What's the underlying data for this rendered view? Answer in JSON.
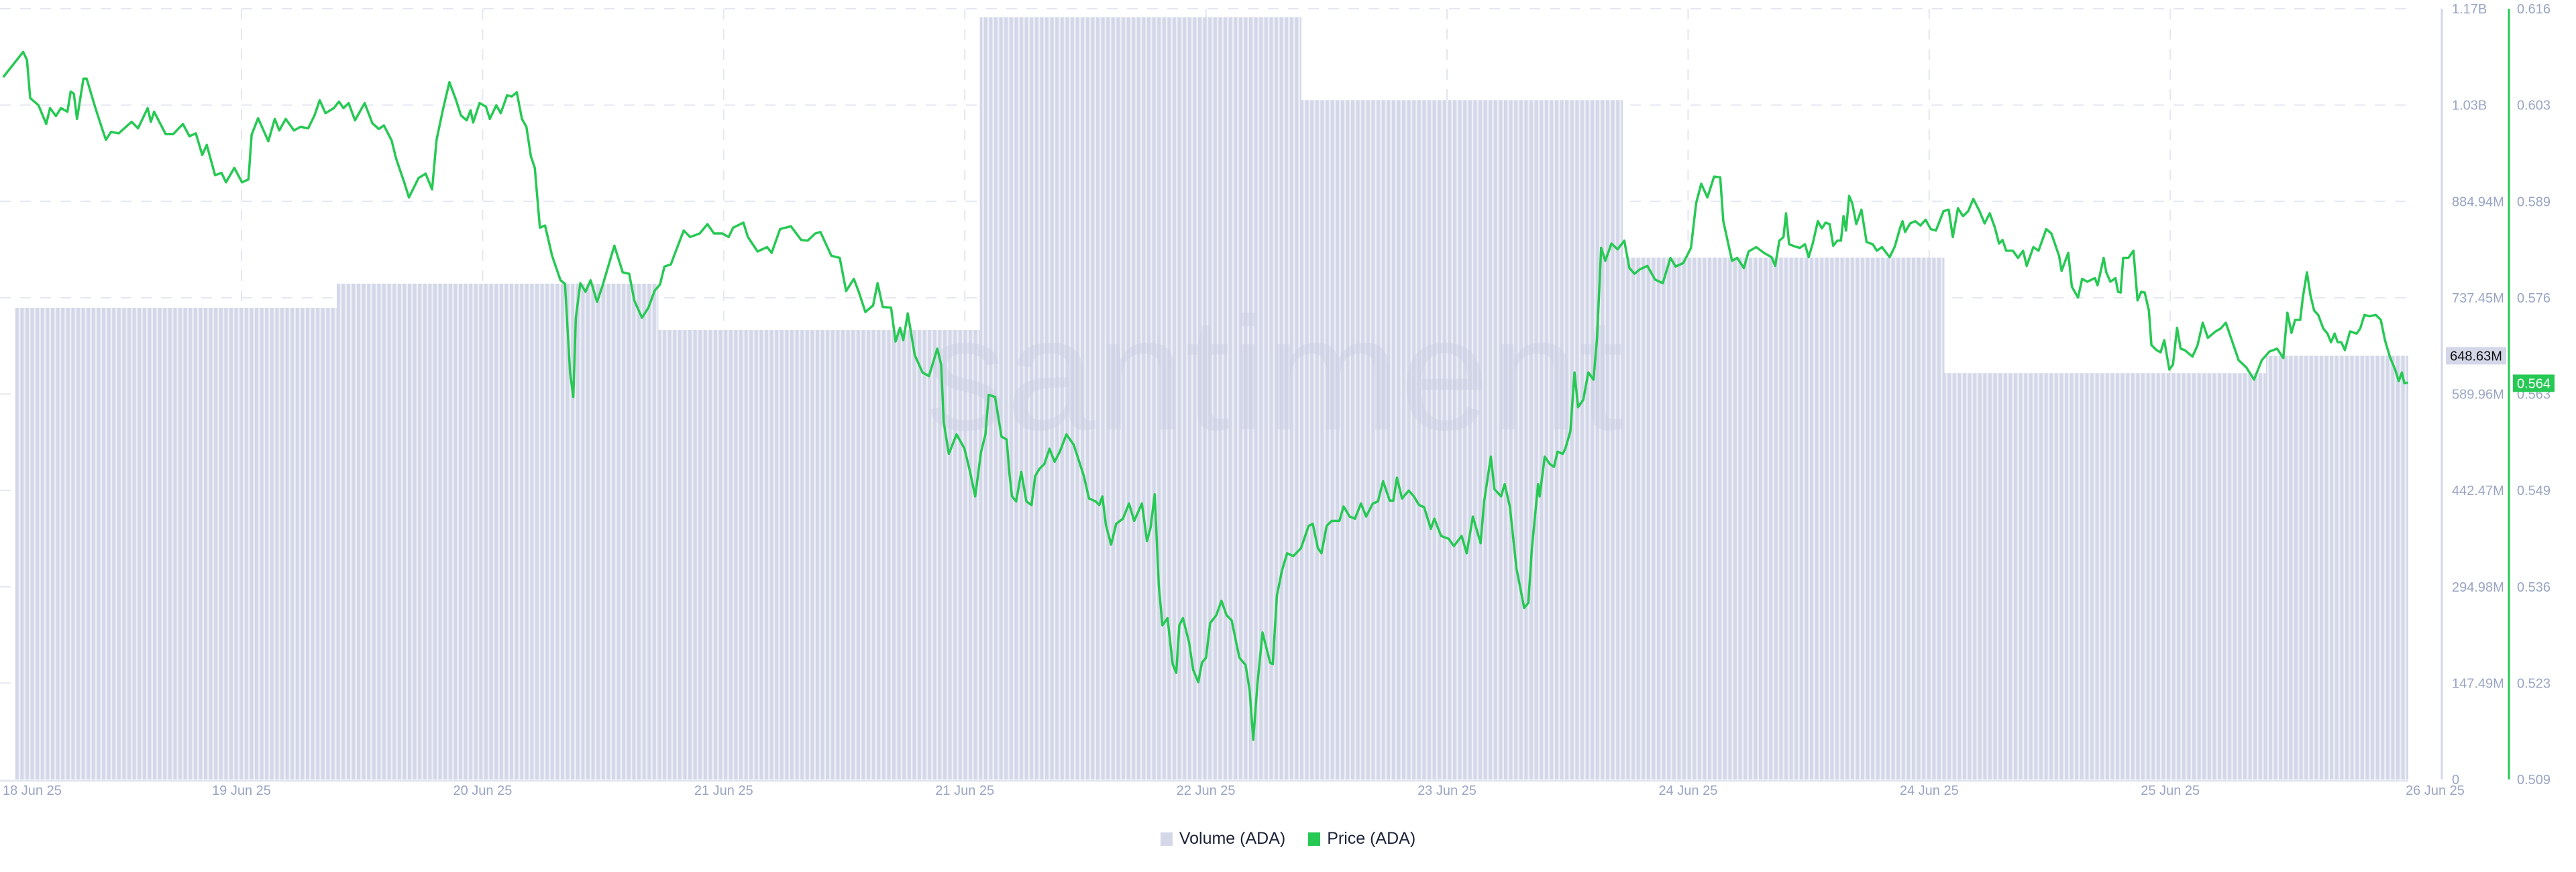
{
  "watermark": "santiment",
  "legend": [
    {
      "label": "Volume (ADA)",
      "color": "#d3d7e8"
    },
    {
      "label": "Price (ADA)",
      "color": "#26c953"
    }
  ],
  "chart_data": {
    "type": "bar+line",
    "x_tick_labels": [
      "18 Jun 25",
      "19 Jun 25",
      "20 Jun 25",
      "21 Jun 25",
      "21 Jun 25",
      "22 Jun 25",
      "23 Jun 25",
      "24 Jun 25",
      "24 Jun 25",
      "25 Jun 25",
      "26 Jun 25"
    ],
    "grid": true,
    "legend_position": "bottom",
    "volume_axis": {
      "side": "right",
      "ylim": [
        0,
        1179920000
      ],
      "tick_labels": [
        "1.17B",
        "1.03B",
        "884.94M",
        "737.45M",
        "589.96M",
        "442.47M",
        "294.98M",
        "147.49M",
        "0"
      ],
      "current_label": "648.63M"
    },
    "price_axis": {
      "side": "right",
      "ylim": [
        0.509,
        0.616
      ],
      "tick_labels": [
        "0.616",
        "0.603",
        "0.589",
        "0.576",
        "0.563",
        "0.549",
        "0.536",
        "0.523",
        "0.509"
      ],
      "current_label": "0.564"
    },
    "series": [
      {
        "name": "Volume (ADA)",
        "type": "bar",
        "color": "#d3d7e8",
        "values": [
          722000000,
          759000000,
          688000000,
          1167000000,
          1040000000,
          799000000,
          622000000,
          648630000
        ]
      },
      {
        "name": "Price (ADA)",
        "type": "line",
        "color": "#26c953",
        "values": [
          0.6065,
          0.61,
          0.6089,
          0.6036,
          0.6026,
          0.6,
          0.6022,
          0.6011,
          0.6022,
          0.6017,
          0.6045,
          0.6042,
          0.6007,
          0.6063,
          0.6063,
          0.6024,
          0.5991,
          0.5978,
          0.5989,
          0.5987,
          0.6003,
          0.5994,
          0.6022,
          0.6003,
          0.6017,
          0.5986,
          0.5986,
          0.6,
          0.5983,
          0.5987,
          0.5957,
          0.5971,
          0.5929,
          0.5932,
          0.5919,
          0.5939,
          0.5919,
          0.5923,
          0.5985,
          0.6008,
          0.5976,
          0.6007,
          0.5991,
          0.6007,
          0.5991,
          0.5996,
          0.5994,
          0.6012,
          0.6033,
          0.6015,
          0.6022,
          0.6031,
          0.6022,
          0.6029,
          0.6005,
          0.6029,
          0.6001,
          0.5993,
          0.5998,
          0.5977,
          0.5952,
          0.5918,
          0.5898,
          0.5925,
          0.5931,
          0.5909,
          0.5978,
          0.602,
          0.6058,
          0.6034,
          0.6012,
          0.6005,
          0.6019,
          0.6002,
          0.6029,
          0.6024,
          0.6007,
          0.6026,
          0.6015,
          0.604,
          0.6038,
          0.6044,
          0.6007,
          0.5996,
          0.5955,
          0.5939,
          0.5856,
          0.5859,
          0.5817,
          0.5783,
          0.5778,
          0.5655,
          0.5621,
          0.5731,
          0.5779,
          0.5767,
          0.5783,
          0.5753,
          0.5774,
          0.5831,
          0.5794,
          0.5792,
          0.5755,
          0.5731,
          0.5745,
          0.5769,
          0.5777,
          0.5802,
          0.5805,
          0.5817,
          0.5852,
          0.5843,
          0.5848,
          0.5861,
          0.5848,
          0.5848,
          0.5843,
          0.5856,
          0.5863,
          0.5843,
          0.5823,
          0.5829,
          0.5821,
          0.5854,
          0.5858,
          0.5839,
          0.5838,
          0.5848,
          0.585,
          0.5817,
          0.5814,
          0.5768,
          0.5785,
          0.5766,
          0.5739,
          0.5748,
          0.5779,
          0.5746,
          0.5745,
          0.5698,
          0.5717,
          0.57,
          0.5737,
          0.5679,
          0.5655,
          0.565,
          0.5688,
          0.5666,
          0.5586,
          0.5542,
          0.5569,
          0.555,
          0.5521,
          0.5483,
          0.5544,
          0.5569,
          0.5624,
          0.5621,
          0.5566,
          0.5562,
          0.5514,
          0.5483,
          0.5476,
          0.5517,
          0.5476,
          0.5471,
          0.5511,
          0.5521,
          0.5528,
          0.5549,
          0.5531,
          0.5545,
          0.5569,
          0.5555,
          0.5542,
          0.5511,
          0.548,
          0.5476,
          0.5471,
          0.5483,
          0.5443,
          0.5416,
          0.5445,
          0.5452,
          0.5473,
          0.5449,
          0.5473,
          0.5421,
          0.544,
          0.5486,
          0.5359,
          0.5304,
          0.5314,
          0.525,
          0.5238,
          0.5304,
          0.5314,
          0.528,
          0.5242,
          0.5225,
          0.5252,
          0.5259,
          0.5307,
          0.5318,
          0.5338,
          0.5318,
          0.5311,
          0.5259,
          0.5249,
          0.5214,
          0.5145,
          0.5221,
          0.5294,
          0.5252,
          0.525,
          0.5345,
          0.538,
          0.5404,
          0.54,
          0.5411,
          0.5442,
          0.5445,
          0.5411,
          0.5404,
          0.5442,
          0.5449,
          0.5449,
          0.5469,
          0.5455,
          0.5452,
          0.5473,
          0.5455,
          0.5473,
          0.5476,
          0.5504,
          0.5477,
          0.5477,
          0.5509,
          0.548,
          0.5491,
          0.5483,
          0.5471,
          0.5468,
          0.5438,
          0.5452,
          0.5428,
          0.5424,
          0.5414,
          0.5428,
          0.5404,
          0.5455,
          0.5418,
          0.5476,
          0.5538,
          0.5493,
          0.5483,
          0.55,
          0.5469,
          0.5383,
          0.5328,
          0.5335,
          0.5411,
          0.55,
          0.5483,
          0.5538,
          0.5528,
          0.5524,
          0.5545,
          0.5542,
          0.5549,
          0.5573,
          0.5655,
          0.5607,
          0.5617,
          0.5655,
          0.5645,
          0.5703,
          0.5828,
          0.581,
          0.5834,
          0.5826,
          0.5838,
          0.58,
          0.5792,
          0.5798,
          0.5803,
          0.5784,
          0.5779,
          0.5814,
          0.5802,
          0.5807,
          0.5828,
          0.589,
          0.5917,
          0.5898,
          0.5927,
          0.5926,
          0.5865,
          0.581,
          0.5814,
          0.58,
          0.5823,
          0.5829,
          0.5821,
          0.5815,
          0.5803,
          0.5838,
          0.5843,
          0.5876,
          0.5833,
          0.583,
          0.5828,
          0.5833,
          0.5815,
          0.5834,
          0.5865,
          0.5855,
          0.5863,
          0.5861,
          0.5831,
          0.5838,
          0.5838,
          0.5872,
          0.5852,
          0.59,
          0.589,
          0.5861,
          0.5881,
          0.5836,
          0.5833,
          0.5824,
          0.5829,
          0.5815,
          0.583,
          0.5855,
          0.5865,
          0.585,
          0.5862,
          0.5865,
          0.5859,
          0.5867,
          0.5854,
          0.5852,
          0.5879,
          0.5881,
          0.5843,
          0.5883,
          0.5872,
          0.5879,
          0.5896,
          0.5879,
          0.5862,
          0.5876,
          0.5856,
          0.5834,
          0.5839,
          0.5824,
          0.5824,
          0.5814,
          0.5824,
          0.5803,
          0.5829,
          0.5824,
          0.5854,
          0.5848,
          0.5817,
          0.5796,
          0.5821,
          0.5774,
          0.5759,
          0.5785,
          0.5781,
          0.5786,
          0.5776,
          0.5814,
          0.5794,
          0.5781,
          0.5786,
          0.5767,
          0.5766,
          0.5814,
          0.5814,
          0.5824,
          0.5755,
          0.5767,
          0.5766,
          0.5741,
          0.5693,
          0.5686,
          0.5683,
          0.57,
          0.5659,
          0.5666,
          0.5717,
          0.5688,
          0.5686,
          0.5677,
          0.5693,
          0.5724,
          0.5703,
          0.5712,
          0.5716,
          0.5724,
          0.5703,
          0.5672,
          0.5662,
          0.5645,
          0.5672,
          0.5684,
          0.5688,
          0.5675,
          0.5738,
          0.571,
          0.5728,
          0.5728,
          0.5759,
          0.5794,
          0.5762,
          0.5741,
          0.5735,
          0.5716,
          0.5709,
          0.5697,
          0.5709,
          0.5697,
          0.5697,
          0.5686,
          0.5712,
          0.5709,
          0.5716,
          0.5735,
          0.5733,
          0.5735,
          0.5728,
          0.57,
          0.5676,
          0.5659,
          0.5643,
          0.5655,
          0.564,
          0.5641
        ]
      }
    ]
  }
}
